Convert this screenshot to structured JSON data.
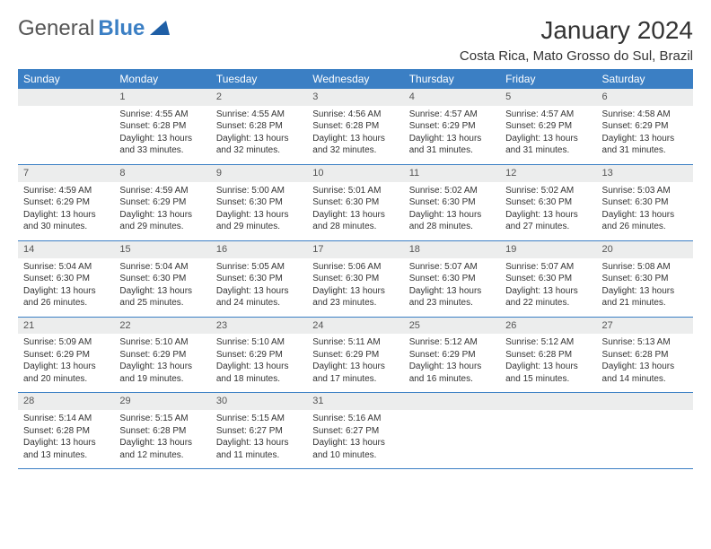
{
  "logo": {
    "text_a": "General",
    "text_b": "Blue",
    "triangle_color": "#1f5fa6"
  },
  "header": {
    "month_title": "January 2024",
    "location": "Costa Rica, Mato Grosso do Sul, Brazil",
    "title_fontsize_pt": 21,
    "location_fontsize_pt": 11
  },
  "colors": {
    "header_row_bg": "#3b7fc4",
    "header_row_text": "#ffffff",
    "daynum_bg": "#eceded",
    "daynum_text": "#555555",
    "cell_text": "#333333",
    "row_divider": "#3b7fc4",
    "page_bg": "#ffffff"
  },
  "dayHeaders": [
    "Sunday",
    "Monday",
    "Tuesday",
    "Wednesday",
    "Thursday",
    "Friday",
    "Saturday"
  ],
  "weeks": [
    [
      null,
      {
        "n": "1",
        "sr": "Sunrise: 4:55 AM",
        "ss": "Sunset: 6:28 PM",
        "d1": "Daylight: 13 hours",
        "d2": "and 33 minutes."
      },
      {
        "n": "2",
        "sr": "Sunrise: 4:55 AM",
        "ss": "Sunset: 6:28 PM",
        "d1": "Daylight: 13 hours",
        "d2": "and 32 minutes."
      },
      {
        "n": "3",
        "sr": "Sunrise: 4:56 AM",
        "ss": "Sunset: 6:28 PM",
        "d1": "Daylight: 13 hours",
        "d2": "and 32 minutes."
      },
      {
        "n": "4",
        "sr": "Sunrise: 4:57 AM",
        "ss": "Sunset: 6:29 PM",
        "d1": "Daylight: 13 hours",
        "d2": "and 31 minutes."
      },
      {
        "n": "5",
        "sr": "Sunrise: 4:57 AM",
        "ss": "Sunset: 6:29 PM",
        "d1": "Daylight: 13 hours",
        "d2": "and 31 minutes."
      },
      {
        "n": "6",
        "sr": "Sunrise: 4:58 AM",
        "ss": "Sunset: 6:29 PM",
        "d1": "Daylight: 13 hours",
        "d2": "and 31 minutes."
      }
    ],
    [
      {
        "n": "7",
        "sr": "Sunrise: 4:59 AM",
        "ss": "Sunset: 6:29 PM",
        "d1": "Daylight: 13 hours",
        "d2": "and 30 minutes."
      },
      {
        "n": "8",
        "sr": "Sunrise: 4:59 AM",
        "ss": "Sunset: 6:29 PM",
        "d1": "Daylight: 13 hours",
        "d2": "and 29 minutes."
      },
      {
        "n": "9",
        "sr": "Sunrise: 5:00 AM",
        "ss": "Sunset: 6:30 PM",
        "d1": "Daylight: 13 hours",
        "d2": "and 29 minutes."
      },
      {
        "n": "10",
        "sr": "Sunrise: 5:01 AM",
        "ss": "Sunset: 6:30 PM",
        "d1": "Daylight: 13 hours",
        "d2": "and 28 minutes."
      },
      {
        "n": "11",
        "sr": "Sunrise: 5:02 AM",
        "ss": "Sunset: 6:30 PM",
        "d1": "Daylight: 13 hours",
        "d2": "and 28 minutes."
      },
      {
        "n": "12",
        "sr": "Sunrise: 5:02 AM",
        "ss": "Sunset: 6:30 PM",
        "d1": "Daylight: 13 hours",
        "d2": "and 27 minutes."
      },
      {
        "n": "13",
        "sr": "Sunrise: 5:03 AM",
        "ss": "Sunset: 6:30 PM",
        "d1": "Daylight: 13 hours",
        "d2": "and 26 minutes."
      }
    ],
    [
      {
        "n": "14",
        "sr": "Sunrise: 5:04 AM",
        "ss": "Sunset: 6:30 PM",
        "d1": "Daylight: 13 hours",
        "d2": "and 26 minutes."
      },
      {
        "n": "15",
        "sr": "Sunrise: 5:04 AM",
        "ss": "Sunset: 6:30 PM",
        "d1": "Daylight: 13 hours",
        "d2": "and 25 minutes."
      },
      {
        "n": "16",
        "sr": "Sunrise: 5:05 AM",
        "ss": "Sunset: 6:30 PM",
        "d1": "Daylight: 13 hours",
        "d2": "and 24 minutes."
      },
      {
        "n": "17",
        "sr": "Sunrise: 5:06 AM",
        "ss": "Sunset: 6:30 PM",
        "d1": "Daylight: 13 hours",
        "d2": "and 23 minutes."
      },
      {
        "n": "18",
        "sr": "Sunrise: 5:07 AM",
        "ss": "Sunset: 6:30 PM",
        "d1": "Daylight: 13 hours",
        "d2": "and 23 minutes."
      },
      {
        "n": "19",
        "sr": "Sunrise: 5:07 AM",
        "ss": "Sunset: 6:30 PM",
        "d1": "Daylight: 13 hours",
        "d2": "and 22 minutes."
      },
      {
        "n": "20",
        "sr": "Sunrise: 5:08 AM",
        "ss": "Sunset: 6:30 PM",
        "d1": "Daylight: 13 hours",
        "d2": "and 21 minutes."
      }
    ],
    [
      {
        "n": "21",
        "sr": "Sunrise: 5:09 AM",
        "ss": "Sunset: 6:29 PM",
        "d1": "Daylight: 13 hours",
        "d2": "and 20 minutes."
      },
      {
        "n": "22",
        "sr": "Sunrise: 5:10 AM",
        "ss": "Sunset: 6:29 PM",
        "d1": "Daylight: 13 hours",
        "d2": "and 19 minutes."
      },
      {
        "n": "23",
        "sr": "Sunrise: 5:10 AM",
        "ss": "Sunset: 6:29 PM",
        "d1": "Daylight: 13 hours",
        "d2": "and 18 minutes."
      },
      {
        "n": "24",
        "sr": "Sunrise: 5:11 AM",
        "ss": "Sunset: 6:29 PM",
        "d1": "Daylight: 13 hours",
        "d2": "and 17 minutes."
      },
      {
        "n": "25",
        "sr": "Sunrise: 5:12 AM",
        "ss": "Sunset: 6:29 PM",
        "d1": "Daylight: 13 hours",
        "d2": "and 16 minutes."
      },
      {
        "n": "26",
        "sr": "Sunrise: 5:12 AM",
        "ss": "Sunset: 6:28 PM",
        "d1": "Daylight: 13 hours",
        "d2": "and 15 minutes."
      },
      {
        "n": "27",
        "sr": "Sunrise: 5:13 AM",
        "ss": "Sunset: 6:28 PM",
        "d1": "Daylight: 13 hours",
        "d2": "and 14 minutes."
      }
    ],
    [
      {
        "n": "28",
        "sr": "Sunrise: 5:14 AM",
        "ss": "Sunset: 6:28 PM",
        "d1": "Daylight: 13 hours",
        "d2": "and 13 minutes."
      },
      {
        "n": "29",
        "sr": "Sunrise: 5:15 AM",
        "ss": "Sunset: 6:28 PM",
        "d1": "Daylight: 13 hours",
        "d2": "and 12 minutes."
      },
      {
        "n": "30",
        "sr": "Sunrise: 5:15 AM",
        "ss": "Sunset: 6:27 PM",
        "d1": "Daylight: 13 hours",
        "d2": "and 11 minutes."
      },
      {
        "n": "31",
        "sr": "Sunrise: 5:16 AM",
        "ss": "Sunset: 6:27 PM",
        "d1": "Daylight: 13 hours",
        "d2": "and 10 minutes."
      },
      null,
      null,
      null
    ]
  ]
}
